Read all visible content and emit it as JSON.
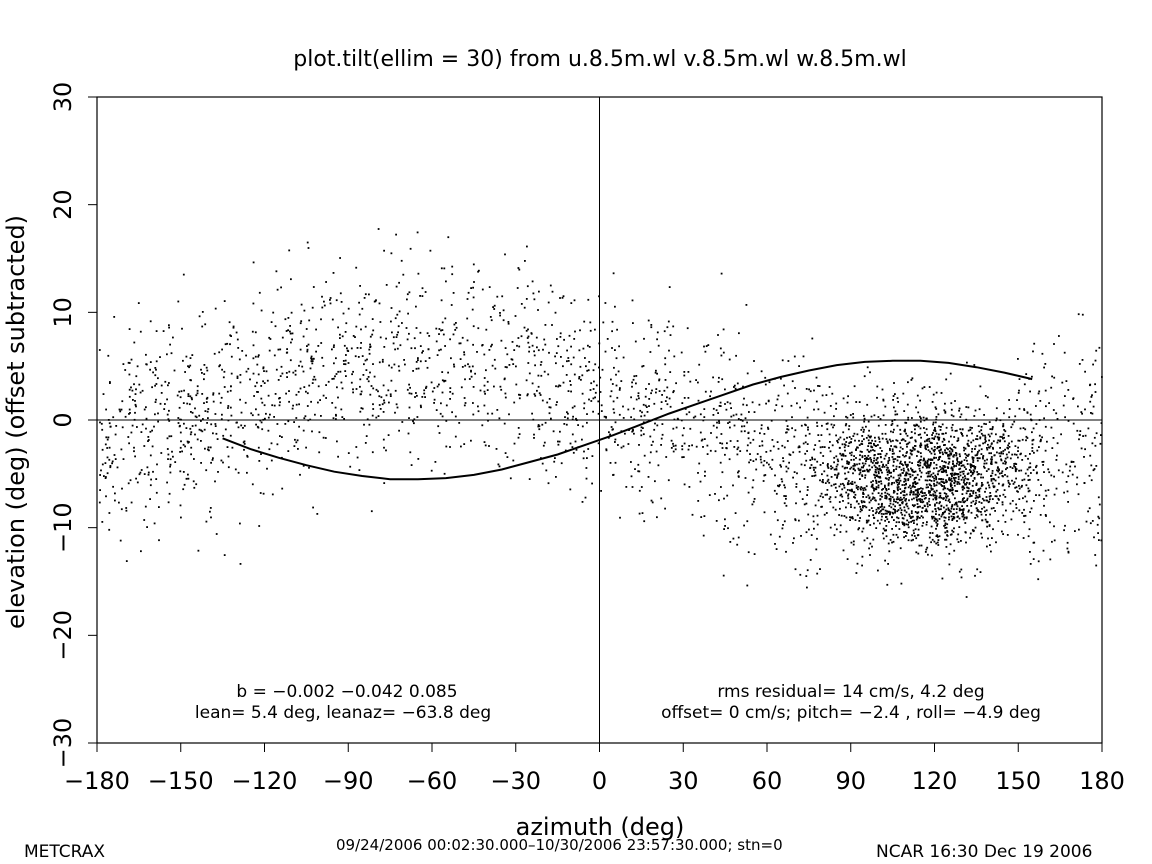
{
  "chart_data": {
    "type": "scatter",
    "title": "plot.tilt(ellim = 30) from u.8.5m.wl v.8.5m.wl w.8.5m.wl",
    "xlabel": "azimuth (deg)",
    "ylabel": "elevation (deg)  (offset subtracted)",
    "xlim": [
      -180,
      180
    ],
    "ylim": [
      -30,
      30
    ],
    "x_ticks": [
      -180,
      -150,
      -120,
      -90,
      -60,
      -30,
      0,
      30,
      60,
      90,
      120,
      150,
      180
    ],
    "y_ticks": [
      -30,
      -20,
      -10,
      0,
      10,
      20,
      30
    ],
    "x_tick_labels": [
      "−180",
      "−150",
      "−120",
      "−90",
      "−60",
      "−30",
      "0",
      "30",
      "60",
      "90",
      "120",
      "150",
      "180"
    ],
    "y_tick_labels": [
      "−30",
      "−20",
      "−10",
      "0",
      "10",
      "20",
      "30"
    ],
    "grid": false,
    "reference_lines": {
      "x": 0,
      "y": 0
    },
    "series": [
      {
        "kind": "fit-curve",
        "x": [
          -135,
          -125,
          -115,
          -105,
          -95,
          -85,
          -75,
          -65,
          -55,
          -45,
          -35,
          -25,
          -15,
          -5,
          5,
          15,
          25,
          35,
          45,
          55,
          65,
          75,
          85,
          95,
          105,
          115,
          125,
          135,
          145,
          155
        ],
        "y": [
          -1.7,
          -2.7,
          -3.5,
          -4.2,
          -4.8,
          -5.2,
          -5.5,
          -5.5,
          -5.4,
          -5.1,
          -4.6,
          -3.9,
          -3.2,
          -2.3,
          -1.4,
          -0.4,
          0.6,
          1.5,
          2.4,
          3.3,
          4.0,
          4.6,
          5.1,
          5.4,
          5.5,
          5.5,
          5.3,
          4.9,
          4.4,
          3.8
        ]
      }
    ],
    "scatter_model": {
      "points": 4200,
      "lean_deg": 5.4,
      "leanaz_deg": -63.8,
      "x_range": [
        -180,
        180
      ],
      "dense_region": [
        90,
        140
      ]
    },
    "annotations": {
      "left_line1": "b = −0.002 −0.042  0.085",
      "left_line2": "lean= 5.4 deg, leanaz= −63.8 deg",
      "right_line1": "rms residual= 14 cm/s, 4.2 deg",
      "right_line2": "offset=  0 cm/s; pitch= −2.4 , roll= −4.9 deg"
    }
  },
  "footer": {
    "left": "METCRAX",
    "center": "09/24/2006 00:02:30.000–10/30/2006 23:57:30.000; stn=0",
    "right": "NCAR 16:30 Dec 19 2006"
  }
}
